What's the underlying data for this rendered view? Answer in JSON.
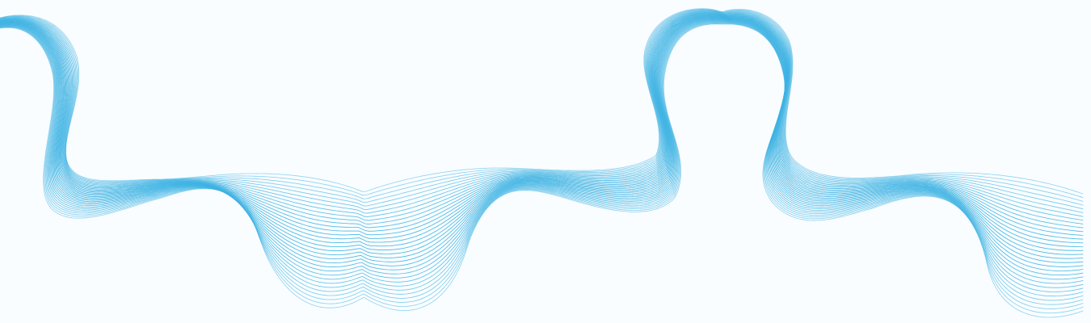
{
  "artwork": {
    "subject": "flowing-line-wave",
    "line_count": 32,
    "colors": {
      "background": "#f9fdff",
      "line": "#3fb3e3"
    }
  }
}
